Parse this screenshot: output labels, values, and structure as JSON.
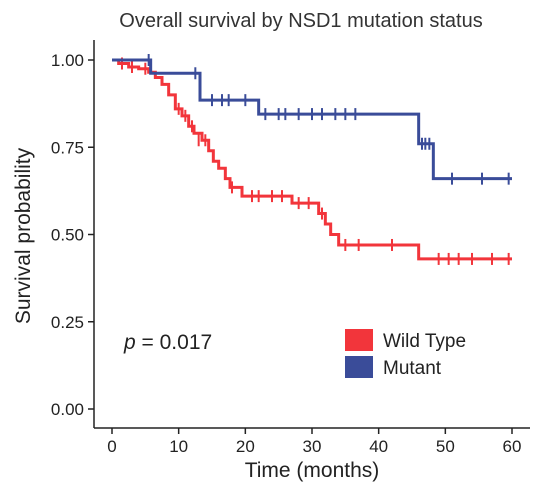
{
  "chart_data": {
    "type": "line",
    "title": "Overall survival by NSD1 mutation status",
    "xlabel": "Time (months)",
    "ylabel": "Survival probability",
    "xlim": [
      0,
      60
    ],
    "ylim": [
      0,
      1
    ],
    "x_ticks": [
      "0",
      "10",
      "20",
      "30",
      "40",
      "50",
      "60"
    ],
    "y_ticks": [
      "0.00",
      "0.25",
      "0.50",
      "0.75",
      "1.00"
    ],
    "x_tick_values": [
      0,
      10,
      20,
      30,
      40,
      50,
      60
    ],
    "y_tick_values": [
      0,
      0.25,
      0.5,
      0.75,
      1.0
    ],
    "grid": false,
    "legend_position": "bottom-right",
    "annotation": {
      "prefix": "p",
      "text": " = 0.017"
    },
    "series": [
      {
        "name": "Wild Type",
        "color": "#f2353b",
        "steps": [
          [
            0,
            1.0
          ],
          [
            1,
            0.99
          ],
          [
            2.5,
            0.98
          ],
          [
            4,
            0.975
          ],
          [
            5.5,
            0.965
          ],
          [
            6.5,
            0.95
          ],
          [
            7.5,
            0.93
          ],
          [
            8.5,
            0.9
          ],
          [
            9.5,
            0.86
          ],
          [
            10.5,
            0.84
          ],
          [
            11.5,
            0.81
          ],
          [
            12.3,
            0.79
          ],
          [
            13.5,
            0.77
          ],
          [
            14.5,
            0.74
          ],
          [
            15.2,
            0.71
          ],
          [
            16,
            0.69
          ],
          [
            17,
            0.66
          ],
          [
            17.7,
            0.635
          ],
          [
            19.5,
            0.61
          ],
          [
            27,
            0.59
          ],
          [
            31,
            0.56
          ],
          [
            32,
            0.53
          ],
          [
            32.8,
            0.5
          ],
          [
            34,
            0.47
          ],
          [
            46,
            0.43
          ]
        ],
        "end_x": 60,
        "censor": [
          [
            1.5,
            0.99
          ],
          [
            3,
            0.98
          ],
          [
            5,
            0.975
          ],
          [
            10,
            0.86
          ],
          [
            11,
            0.84
          ],
          [
            12,
            0.81
          ],
          [
            13,
            0.77
          ],
          [
            14,
            0.77
          ],
          [
            18,
            0.635
          ],
          [
            21,
            0.61
          ],
          [
            22,
            0.61
          ],
          [
            24,
            0.61
          ],
          [
            25.5,
            0.61
          ],
          [
            28,
            0.59
          ],
          [
            29.5,
            0.59
          ],
          [
            31.5,
            0.56
          ],
          [
            35,
            0.47
          ],
          [
            37,
            0.47
          ],
          [
            42,
            0.47
          ],
          [
            49,
            0.43
          ],
          [
            50.5,
            0.43
          ],
          [
            52,
            0.43
          ],
          [
            54,
            0.43
          ],
          [
            57,
            0.43
          ],
          [
            59.5,
            0.43
          ]
        ]
      },
      {
        "name": "Mutant",
        "color": "#3a4c99",
        "steps": [
          [
            0,
            1.0
          ],
          [
            5.8,
            0.962
          ],
          [
            13.2,
            0.885
          ],
          [
            22,
            0.845
          ],
          [
            46,
            0.76
          ],
          [
            48.2,
            0.66
          ]
        ],
        "end_x": 60,
        "censor": [
          [
            5.5,
            1.0
          ],
          [
            12.5,
            0.962
          ],
          [
            15,
            0.885
          ],
          [
            16.5,
            0.885
          ],
          [
            17.5,
            0.885
          ],
          [
            20,
            0.885
          ],
          [
            23,
            0.845
          ],
          [
            25,
            0.845
          ],
          [
            26,
            0.845
          ],
          [
            28,
            0.845
          ],
          [
            30,
            0.845
          ],
          [
            31.5,
            0.845
          ],
          [
            33.5,
            0.845
          ],
          [
            35,
            0.845
          ],
          [
            36.5,
            0.845
          ],
          [
            46.5,
            0.76
          ],
          [
            47,
            0.76
          ],
          [
            47.6,
            0.76
          ],
          [
            51,
            0.66
          ],
          [
            55.5,
            0.66
          ],
          [
            59.5,
            0.66
          ]
        ]
      }
    ]
  }
}
